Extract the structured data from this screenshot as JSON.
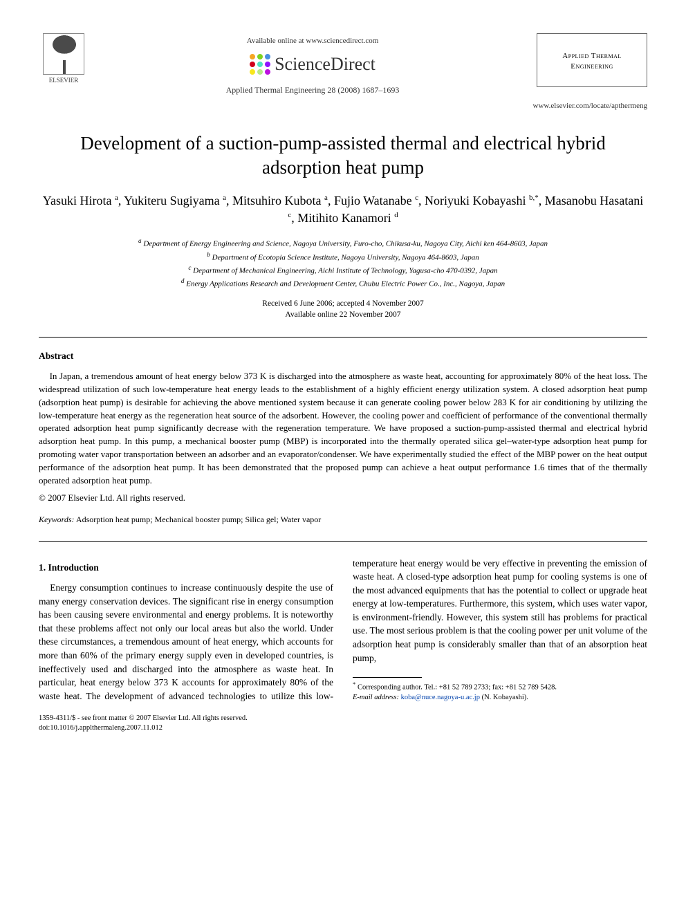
{
  "header": {
    "publisher_name": "ELSEVIER",
    "available_online": "Available online at www.sciencedirect.com",
    "sd_brand": "ScienceDirect",
    "journal_ref": "Applied Thermal Engineering 28 (2008) 1687–1693",
    "journal_box": "Applied Thermal Engineering",
    "locate_url": "www.elsevier.com/locate/apthermeng",
    "sd_dot_colors": [
      "#f5a623",
      "#7ed321",
      "#4a90e2",
      "#d0021b",
      "#50e3c2",
      "#9013fe",
      "#f8e71c",
      "#b8e986",
      "#bd10e0"
    ]
  },
  "title": "Development of a suction-pump-assisted thermal and electrical hybrid adsorption heat pump",
  "authors_html": "Yasuki Hirota <sup>a</sup>, Yukiteru Sugiyama <sup>a</sup>, Mitsuhiro Kubota <sup>a</sup>, Fujio Watanabe <sup>c</sup>, Noriyuki Kobayashi <sup>b,*</sup>, Masanobu Hasatani <sup>c</sup>, Mitihito Kanamori <sup>d</sup>",
  "affiliations": {
    "a": "Department of Energy Engineering and Science, Nagoya University, Furo-cho, Chikusa-ku, Nagoya City, Aichi ken 464-8603, Japan",
    "b": "Department of Ecotopia Science Institute, Nagoya University, Nagoya 464-8603, Japan",
    "c": "Department of Mechanical Engineering, Aichi Institute of Technology, Yagusa-cho 470-0392, Japan",
    "d": "Energy Applications Research and Development Center, Chubu Electric Power Co., Inc., Nagoya, Japan"
  },
  "dates": {
    "received_accepted": "Received 6 June 2006; accepted 4 November 2007",
    "online": "Available online 22 November 2007"
  },
  "abstract": {
    "heading": "Abstract",
    "body": "In Japan, a tremendous amount of heat energy below 373 K is discharged into the atmosphere as waste heat, accounting for approximately 80% of the heat loss. The widespread utilization of such low-temperature heat energy leads to the establishment of a highly efficient energy utilization system. A closed adsorption heat pump (adsorption heat pump) is desirable for achieving the above mentioned system because it can generate cooling power below 283 K for air conditioning by utilizing the low-temperature heat energy as the regeneration heat source of the adsorbent. However, the cooling power and coefficient of performance of the conventional thermally operated adsorption heat pump significantly decrease with the regeneration temperature. We have proposed a suction-pump-assisted thermal and electrical hybrid adsorption heat pump. In this pump, a mechanical booster pump (MBP) is incorporated into the thermally operated silica gel–water-type adsorption heat pump for promoting water vapor transportation between an adsorber and an evaporator/condenser. We have experimentally studied the effect of the MBP power on the heat output performance of the adsorption heat pump. It has been demonstrated that the proposed pump can achieve a heat output performance 1.6 times that of the thermally operated adsorption heat pump.",
    "copyright": "© 2007 Elsevier Ltd. All rights reserved."
  },
  "keywords": {
    "label": "Keywords:",
    "text": " Adsorption heat pump; Mechanical booster pump; Silica gel; Water vapor"
  },
  "intro": {
    "heading": "1. Introduction",
    "para1": "Energy consumption continues to increase continuously despite the use of many energy conservation devices. The significant rise in energy consumption has been causing severe environmental and energy problems. It is noteworthy that these problems affect not only our local areas but also the world. Under these circumstances, a tremendous amount of heat energy, which accounts for more than 60% of the primary energy supply even in developed countries, is ineffectively used and discharged into the atmosphere as waste heat. In particular, heat energy below 373 K accounts for approximately 80% of the waste heat. The development of advanced technologies to utilize this low-temperature heat energy would be very effective in preventing the emission of waste heat. A closed-type adsorption heat pump for cooling systems is one of the most advanced equipments that has the potential to collect or upgrade heat energy at low-temperatures. Furthermore, this system, which uses water vapor, is environment-friendly. However, this system still has problems for practical use. The most serious problem is that the cooling power per unit volume of the adsorption heat pump is considerably smaller than that of an absorption heat pump,"
  },
  "footnote": {
    "corr": "Corresponding author. Tel.: +81 52 789 2733; fax: +81 52 789 5428.",
    "email_label": "E-mail address:",
    "email": "koba@nuce.nagoya-u.ac.jp",
    "email_who": "(N. Kobayashi)."
  },
  "footer": {
    "front_matter": "1359-4311/$ - see front matter © 2007 Elsevier Ltd. All rights reserved.",
    "doi": "doi:10.1016/j.applthermaleng.2007.11.012"
  },
  "colors": {
    "text": "#000000",
    "link": "#0645ad",
    "rule": "#000000"
  }
}
